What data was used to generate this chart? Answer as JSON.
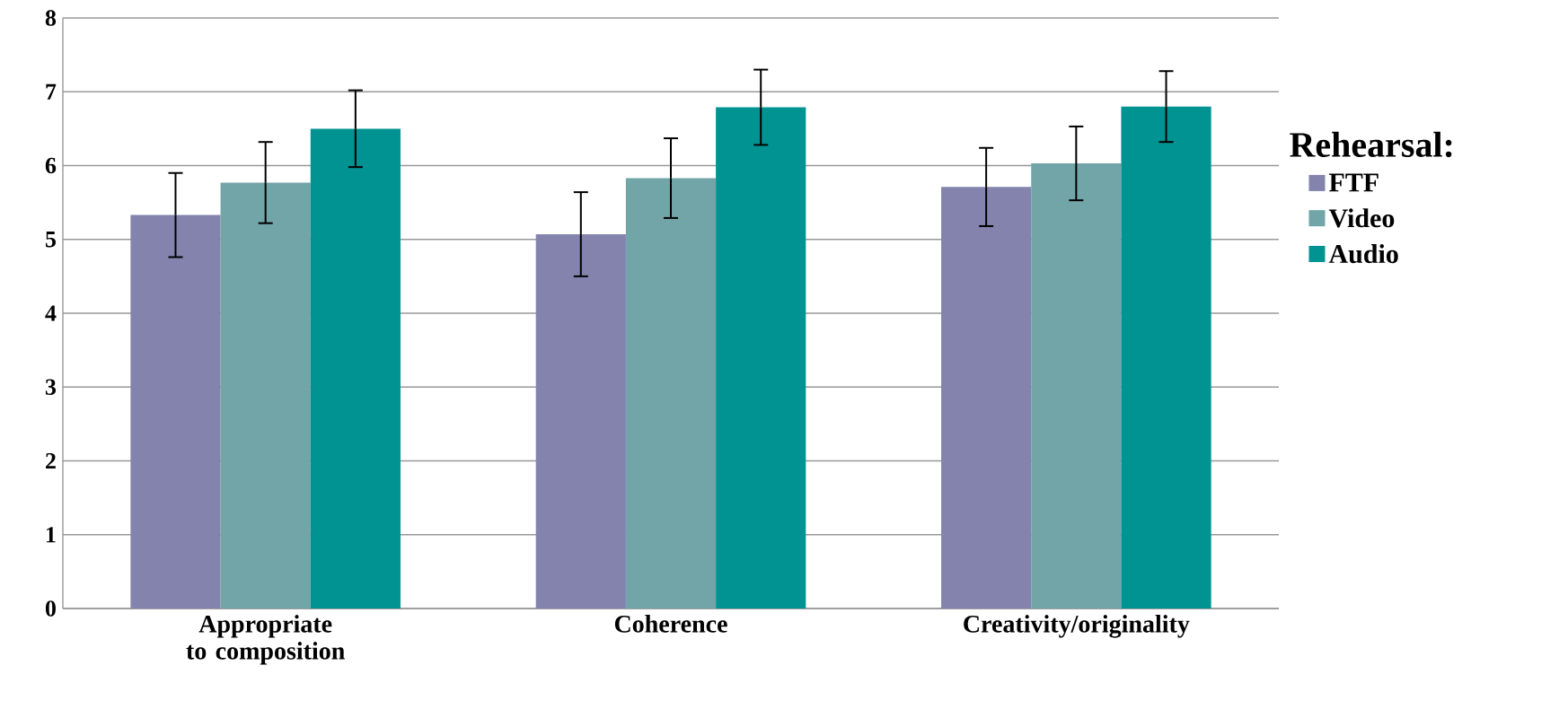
{
  "chart_data": {
    "type": "bar",
    "categories": [
      "Appropriate to composition",
      "Coherence",
      "Creativity/originality"
    ],
    "series": [
      {
        "name": "FTF",
        "color": "#8383ae",
        "values": [
          5.33,
          5.07,
          5.71
        ],
        "errors": [
          0.57,
          0.57,
          0.53
        ]
      },
      {
        "name": "Video",
        "color": "#72a5a8",
        "values": [
          5.77,
          5.83,
          6.03
        ],
        "errors": [
          0.55,
          0.54,
          0.5
        ]
      },
      {
        "name": "Audio",
        "color": "#009392",
        "values": [
          6.5,
          6.79,
          6.8
        ],
        "errors": [
          0.52,
          0.51,
          0.48
        ]
      }
    ],
    "legend_title": "Rehearsal:",
    "legend": "right",
    "ylim": [
      0,
      8
    ],
    "yticks": [
      0,
      1,
      2,
      3,
      4,
      5,
      6,
      7,
      8
    ],
    "grid": "y"
  }
}
